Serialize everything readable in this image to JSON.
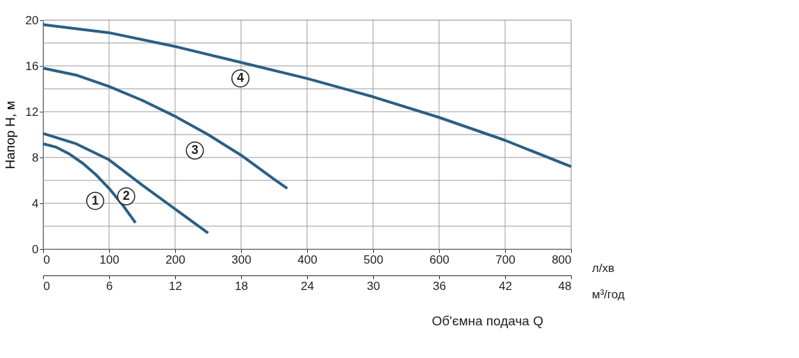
{
  "chart_data": {
    "type": "line",
    "xlabel": "Об'ємна подача Q",
    "ylabel": "Напор H, м",
    "x2label": "м³/год",
    "annotations": [
      "л/хв",
      {
        "text": "1",
        "x": 100,
        "y": 5.3
      },
      {
        "text": "2",
        "x": 147,
        "y": 5.7
      },
      {
        "text": "3",
        "x": 251,
        "y": 9.7
      },
      {
        "text": "4",
        "x": 320,
        "y": 16.0
      }
    ],
    "series": [
      {
        "color": "#2b5f84",
        "x": [
          0,
          20,
          40,
          60,
          80,
          100,
          120,
          140
        ],
        "values": [
          9.2,
          8.9,
          8.3,
          7.5,
          6.5,
          5.3,
          3.9,
          2.3
        ]
      },
      {
        "color": "#2b5f84",
        "x": [
          0,
          50,
          100,
          150,
          200,
          250
        ],
        "values": [
          10.1,
          9.2,
          7.8,
          5.6,
          3.5,
          1.4
        ]
      },
      {
        "color": "#2b5f84",
        "x": [
          0,
          50,
          100,
          150,
          200,
          250,
          300,
          350,
          370
        ],
        "values": [
          15.8,
          15.2,
          14.2,
          13.0,
          11.6,
          10.0,
          8.2,
          6.1,
          5.3
        ]
      },
      {
        "color": "#2b5f84",
        "x": [
          0,
          100,
          200,
          300,
          400,
          500,
          600,
          700,
          800
        ],
        "values": [
          19.6,
          18.9,
          17.7,
          16.3,
          14.9,
          13.3,
          11.5,
          9.5,
          7.2
        ]
      }
    ],
    "xlim": [
      0,
      800
    ],
    "xticks": [
      0,
      100,
      200,
      300,
      400,
      500,
      600,
      700,
      800
    ],
    "x2lim": [
      0,
      48
    ],
    "x2ticks": [
      0,
      6,
      12,
      18,
      24,
      30,
      36,
      42,
      48
    ],
    "ylim": [
      0,
      20
    ],
    "yticks": [
      0,
      {
        "value": 2,
        "label": null
      },
      4,
      {
        "value": 6,
        "label": null
      },
      8,
      {
        "value": 10,
        "label": null
      },
      12,
      {
        "value": 14,
        "label": null
      },
      16,
      {
        "value": 18,
        "label": null
      },
      20
    ],
    "grid": true,
    "legend": false,
    "marker": "none",
    "line_style": "solid"
  }
}
